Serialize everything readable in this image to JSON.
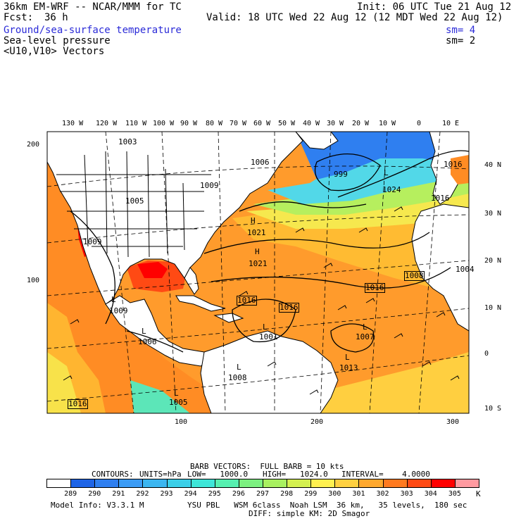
{
  "header": {
    "model": "36km EM-WRF -- NCAR/MMM for TC",
    "init": "Init: 06 UTC Tue 21 Aug 12",
    "fcst_label": "Fcst:",
    "fcst_value": "36 h",
    "valid": "Valid: 18 UTC Wed 22 Aug 12 (12 MDT Wed 22 Aug 12)"
  },
  "fields": [
    {
      "label": "Ground/sea-surface temperature",
      "smooth": "sm= 4",
      "color": "#2b2bd8"
    },
    {
      "label": "Sea-level pressure",
      "smooth": "sm= 2",
      "color": "#000000"
    },
    {
      "label": "<U10,V10> Vectors",
      "smooth": "",
      "color": "#000000"
    }
  ],
  "map": {
    "lon_labels": [
      "130 W",
      "120 W",
      "110 W",
      "100 W",
      "90 W",
      "80 W",
      "70 W",
      "60 W",
      "50 W",
      "40 W",
      "30 W",
      "20 W",
      "10 W",
      "0",
      "10 E"
    ],
    "lat_labels": [
      "40 N",
      "30 N",
      "20 N",
      "10 N",
      "0",
      "10 S"
    ],
    "grid_x_labels": [
      "100",
      "200",
      "300"
    ],
    "grid_y_labels": [
      "200",
      "100"
    ],
    "pressure_labels": [
      "1003",
      "1006",
      "1009",
      "999",
      "1024",
      "1016",
      "1005",
      "1021",
      "1021",
      "1009",
      "1016",
      "1016",
      "1016",
      "1008",
      "1004",
      "1009",
      "1006",
      "1001",
      "1007",
      "1013",
      "1008",
      "1016",
      "1005",
      "1016"
    ],
    "high_low_labels": [
      "H",
      "H",
      "L",
      "L",
      "L",
      "L",
      "L",
      "L",
      "L",
      "L"
    ]
  },
  "footer": {
    "barb": "BARB VECTORS:  FULL BARB = 10 kts",
    "contours_label": "CONTOURS:",
    "units": "UNITS=hPa",
    "low": "LOW=   1000.0",
    "high": "HIGH=   1024.0",
    "interval": "INTERVAL=    4.0000",
    "colorbar_unit": "K",
    "colorbar_values": [
      "289",
      "290",
      "291",
      "292",
      "293",
      "294",
      "295",
      "296",
      "297",
      "298",
      "299",
      "300",
      "301",
      "302",
      "303",
      "304",
      "305"
    ],
    "colorbar_colors": [
      "#ffffff",
      "#1e64e6",
      "#2f7ff0",
      "#3c9cf5",
      "#3cb6f0",
      "#3ccfe8",
      "#3ee6d8",
      "#56f0b0",
      "#7cf080",
      "#a8f060",
      "#d4f050",
      "#fff050",
      "#ffd040",
      "#ffa82e",
      "#ff7a20",
      "#ff4a14",
      "#ff0000",
      "#ff9aa0"
    ],
    "model_info": "Model Info: V3.3.1 M",
    "physics": "YSU PBL   WSM 6class  Noah LSM  36 km,   35 levels,  180 sec",
    "diff": "DIFF: simple KM: 2D Smagor"
  }
}
